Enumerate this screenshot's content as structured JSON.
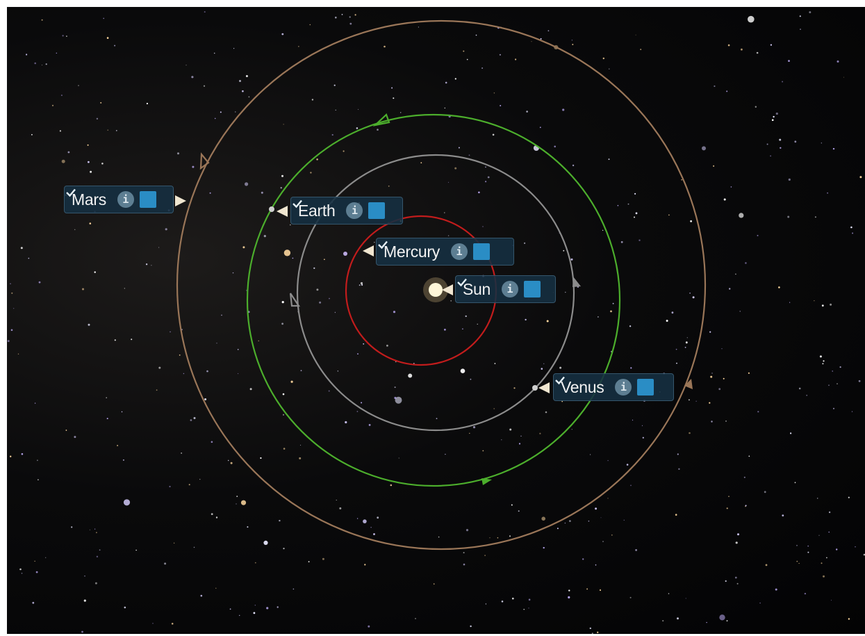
{
  "info_icon": "i",
  "labels": [
    "Mars",
    "Earth",
    "Mercury",
    "Sun",
    "Venus"
  ]
}
